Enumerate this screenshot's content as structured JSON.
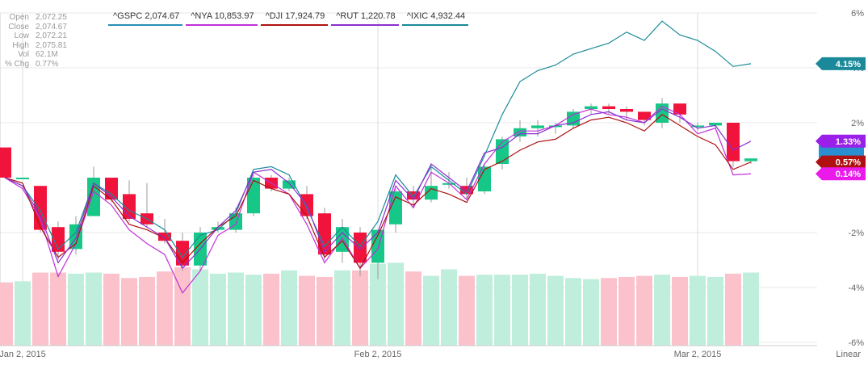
{
  "header": {
    "ohlc": [
      {
        "label": "Open",
        "value": "2,072.25"
      },
      {
        "label": "Close",
        "value": "2,074.67"
      },
      {
        "label": "Low",
        "value": "2,072.21"
      },
      {
        "label": "High",
        "value": "2,075.81"
      },
      {
        "label": "Vol",
        "value": "62.1M"
      },
      {
        "label": "% Chg",
        "value": "0.77%"
      }
    ]
  },
  "legend": [
    {
      "text": "^GSPC 2,074.67",
      "color": "#2a8fb4"
    },
    {
      "text": "^NYA 10,853.97",
      "color": "#c030d8"
    },
    {
      "text": "^DJI 17,924.79",
      "color": "#b01010"
    },
    {
      "text": "^RUT 1,220.78",
      "color": "#8b2fd0"
    },
    {
      "text": "^IXIC 4,932.44",
      "color": "#1a8a9a"
    }
  ],
  "scale_label": "Linear",
  "colors": {
    "up": "#16c787",
    "down": "#f0143c",
    "up_vol": "#bfeedd",
    "down_vol": "#fbc2cc",
    "grid": "#e8e8e8"
  },
  "chart_data": {
    "type": "candlestick",
    "ylim": [
      -6,
      6
    ],
    "y_ticks": [
      "6%",
      "4%",
      "2%",
      "-2%",
      "-4%",
      "-6%"
    ],
    "y_tick_values": [
      6,
      4,
      2,
      -2,
      -4,
      -6
    ],
    "x_ticks": [
      {
        "label": "Jan 2, 2015",
        "index": 1
      },
      {
        "label": "Feb 2, 2015",
        "index": 21
      },
      {
        "label": "Mar 2, 2015",
        "index": 39
      }
    ],
    "candles": [
      {
        "o": 1.1,
        "c": 0.0,
        "h": 1.1,
        "l": 0.0
      },
      {
        "o": 0.0,
        "c": 0.0,
        "h": 0.0,
        "l": 0.0
      },
      {
        "o": -0.3,
        "c": -1.9,
        "h": -0.3,
        "l": -2.0
      },
      {
        "o": -1.8,
        "c": -2.7,
        "h": -1.6,
        "l": -3.0
      },
      {
        "o": -2.6,
        "c": -1.7,
        "h": -1.4,
        "l": -2.8
      },
      {
        "o": -1.4,
        "c": 0.0,
        "h": 0.4,
        "l": -1.4
      },
      {
        "o": 0.0,
        "c": -0.8,
        "h": 0.0,
        "l": -0.9
      },
      {
        "o": -0.6,
        "c": -1.5,
        "h": -0.1,
        "l": -1.6
      },
      {
        "o": -1.3,
        "c": -1.7,
        "h": -0.2,
        "l": -1.8
      },
      {
        "o": -2.0,
        "c": -2.3,
        "h": -1.5,
        "l": -2.4
      },
      {
        "o": -2.3,
        "c": -3.2,
        "h": -2.0,
        "l": -3.4
      },
      {
        "o": -3.2,
        "c": -2.0,
        "h": -1.8,
        "l": -3.4
      },
      {
        "o": -1.9,
        "c": -1.8,
        "h": -1.6,
        "l": -2.0
      },
      {
        "o": -1.9,
        "c": -1.3,
        "h": -1.1,
        "l": -2.0
      },
      {
        "o": -1.3,
        "c": 0.0,
        "h": 0.1,
        "l": -1.4
      },
      {
        "o": 0.0,
        "c": -0.4,
        "h": 0.1,
        "l": -0.5
      },
      {
        "o": -0.4,
        "c": -0.1,
        "h": 0.0,
        "l": -0.5
      },
      {
        "o": -0.6,
        "c": -1.4,
        "h": -0.3,
        "l": -1.5
      },
      {
        "o": -1.3,
        "c": -2.8,
        "h": -1.1,
        "l": -3.0
      },
      {
        "o": -2.7,
        "c": -1.8,
        "h": -1.5,
        "l": -3.1
      },
      {
        "o": -2.0,
        "c": -3.1,
        "h": -1.8,
        "l": -3.6
      },
      {
        "o": -3.1,
        "c": -1.9,
        "h": -1.9,
        "l": -3.7
      },
      {
        "o": -1.7,
        "c": -0.5,
        "h": -0.4,
        "l": -2.0
      },
      {
        "o": -0.5,
        "c": -0.8,
        "h": -0.3,
        "l": -1.1
      },
      {
        "o": -0.8,
        "c": -0.3,
        "h": 0.5,
        "l": -0.9
      },
      {
        "o": -0.2,
        "c": -0.2,
        "h": 0.2,
        "l": -0.4
      },
      {
        "o": -0.3,
        "c": -0.6,
        "h": 0.0,
        "l": -0.8
      },
      {
        "o": -0.5,
        "c": 0.4,
        "h": 0.5,
        "l": -0.6
      },
      {
        "o": 0.5,
        "c": 1.4,
        "h": 1.5,
        "l": 0.3
      },
      {
        "o": 1.5,
        "c": 1.8,
        "h": 2.1,
        "l": 1.3
      },
      {
        "o": 1.8,
        "c": 1.9,
        "h": 2.1,
        "l": 1.5
      },
      {
        "o": 1.9,
        "c": 1.9,
        "h": 2.0,
        "l": 1.6
      },
      {
        "o": 1.9,
        "c": 2.4,
        "h": 2.5,
        "l": 1.8
      },
      {
        "o": 2.5,
        "c": 2.6,
        "h": 2.7,
        "l": 2.3
      },
      {
        "o": 2.6,
        "c": 2.5,
        "h": 2.7,
        "l": 2.3
      },
      {
        "o": 2.5,
        "c": 2.4,
        "h": 2.6,
        "l": 2.1
      },
      {
        "o": 2.4,
        "c": 2.1,
        "h": 2.4,
        "l": 1.9
      },
      {
        "o": 2.0,
        "c": 2.7,
        "h": 2.9,
        "l": 1.8
      },
      {
        "o": 2.7,
        "c": 2.3,
        "h": 2.7,
        "l": 2.0
      },
      {
        "o": 1.9,
        "c": 1.9,
        "h": 2.0,
        "l": 1.7
      },
      {
        "o": 1.9,
        "c": 2.0,
        "h": 2.0,
        "l": 1.8
      },
      {
        "o": 2.0,
        "c": 0.6,
        "h": 2.0,
        "l": 0.4
      },
      {
        "o": 0.6,
        "c": 0.7,
        "h": 0.7,
        "l": 0.5
      }
    ],
    "volume": [
      58,
      59,
      67,
      67,
      66,
      67,
      66,
      62,
      63,
      68,
      72,
      70,
      66,
      67,
      65,
      66,
      69,
      64,
      63,
      69,
      69,
      75,
      76,
      68,
      64,
      70,
      64,
      65,
      65,
      65,
      66,
      64,
      62,
      61,
      62,
      63,
      64,
      65,
      63,
      64,
      63,
      66,
      67
    ],
    "series": [
      {
        "name": "^IXIC",
        "color": "#1a8a9a",
        "values": [
          0,
          -0.3,
          -1.2,
          -2.6,
          -2.0,
          -0.2,
          -0.6,
          -1.2,
          -1.5,
          -1.9,
          -2.9,
          -2.1,
          -1.9,
          -1.3,
          0.3,
          0.4,
          0.1,
          -1.1,
          -2.5,
          -1.8,
          -2.5,
          -1.6,
          0.1,
          -0.7,
          0.4,
          -0.1,
          -0.6,
          0.8,
          2.3,
          3.5,
          3.9,
          4.1,
          4.5,
          4.7,
          4.9,
          5.3,
          5.0,
          5.7,
          5.2,
          5.0,
          4.6,
          4.05,
          4.15
        ]
      },
      {
        "name": "^NYA",
        "color": "#c030d8",
        "values": [
          0,
          -0.4,
          -1.5,
          -3.6,
          -2.4,
          -0.5,
          -1.0,
          -1.9,
          -2.4,
          -2.8,
          -4.2,
          -3.4,
          -2.1,
          -1.7,
          0.2,
          -0.2,
          -0.6,
          -1.7,
          -3.1,
          -2.2,
          -3.3,
          -2.6,
          -0.3,
          -1.1,
          0.2,
          -0.2,
          -0.8,
          0.5,
          1.3,
          1.7,
          1.7,
          1.9,
          2.3,
          2.5,
          2.3,
          2.2,
          2.0,
          2.6,
          2.3,
          1.6,
          1.8,
          0.1,
          0.14
        ]
      },
      {
        "name": "^DJI",
        "color": "#b01010",
        "values": [
          0,
          -0.2,
          -1.8,
          -2.9,
          -2.4,
          -0.3,
          -0.8,
          -1.7,
          -1.9,
          -2.2,
          -3.1,
          -2.4,
          -1.8,
          -1.4,
          -0.1,
          -0.4,
          -0.6,
          -1.4,
          -2.9,
          -2.3,
          -3.3,
          -2.1,
          -0.7,
          -1.0,
          -0.4,
          -0.6,
          -0.9,
          0.3,
          0.6,
          1.0,
          1.3,
          1.4,
          1.8,
          2.1,
          2.2,
          2.0,
          1.7,
          2.3,
          1.9,
          1.5,
          1.2,
          0.3,
          0.57
        ]
      },
      {
        "name": "^RUT",
        "color": "#8b2fd0",
        "values": [
          0,
          -0.3,
          -1.4,
          -3.1,
          -2.2,
          -0.2,
          -0.7,
          -1.4,
          -1.8,
          -2.2,
          -3.3,
          -2.6,
          -1.8,
          -1.2,
          0.2,
          0.3,
          -0.2,
          -1.0,
          -2.7,
          -2.0,
          -2.6,
          -2.0,
          -0.1,
          -0.8,
          0.5,
          0.0,
          -0.5,
          0.9,
          1.1,
          1.6,
          1.6,
          1.9,
          2.0,
          2.3,
          2.4,
          2.1,
          2.0,
          2.5,
          2.2,
          1.8,
          1.9,
          1.0,
          1.33
        ]
      }
    ],
    "price_tags": [
      {
        "text": "4.15%",
        "value": 4.15,
        "color": "#1a8a9a"
      },
      {
        "text": "1.33%",
        "value": 1.33,
        "color": "#9a1fe8"
      },
      {
        "text": "0.57%",
        "value": 0.57,
        "color": "#b01010"
      },
      {
        "text": "0.14%",
        "value": 0.14,
        "color": "#ea1aea"
      }
    ],
    "hidden_tag_color": "#2a8fd0"
  }
}
